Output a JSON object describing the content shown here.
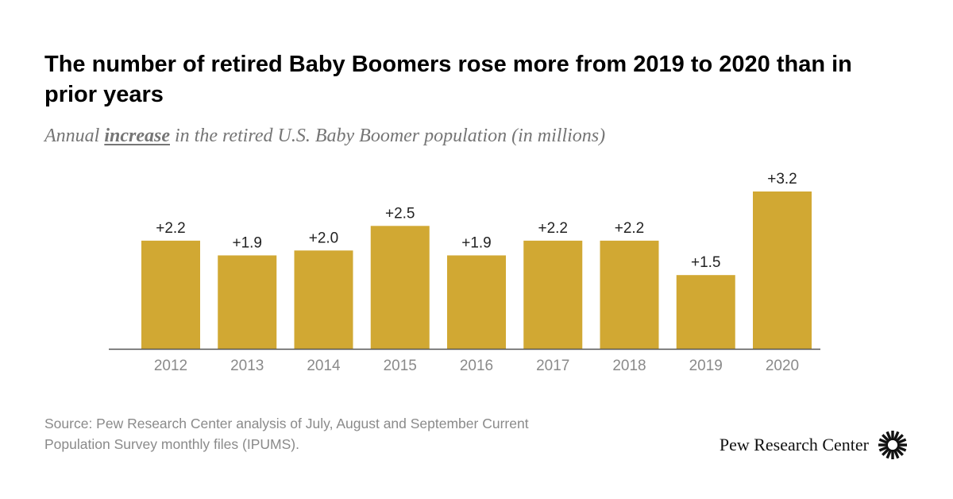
{
  "title": "The number of retired Baby Boomers rose more from 2019 to 2020 than in prior years",
  "subtitle": {
    "before": "Annual ",
    "emphasis": "increase",
    "after": " in the retired U.S. Baby Boomer population (in millions)"
  },
  "chart_data": {
    "type": "bar",
    "title": "The number of retired Baby Boomers rose more from 2019 to 2020 than in prior years",
    "subtitle": "Annual increase in the retired U.S. Baby Boomer population (in millions)",
    "categories": [
      "2012",
      "2013",
      "2014",
      "2015",
      "2016",
      "2017",
      "2018",
      "2019",
      "2020"
    ],
    "values": [
      2.2,
      1.9,
      2.0,
      2.5,
      1.9,
      2.2,
      2.2,
      1.5,
      3.2
    ],
    "data_labels": [
      "+2.2",
      "+1.9",
      "+2.0",
      "+2.5",
      "+1.9",
      "+2.2",
      "+2.2",
      "+1.5",
      "+3.2"
    ],
    "xlabel": "",
    "ylabel": "",
    "ylim": [
      0,
      3.2
    ],
    "grid": false,
    "legend": "none",
    "bar_color": "#D1A833",
    "axis_color": "#555555"
  },
  "source": {
    "line1": "Source: Pew Research Center analysis of July, August and September Current",
    "line2": "Population Survey monthly files (IPUMS)."
  },
  "brand": {
    "name": "Pew Research Center",
    "logo_icon": "pew-sunburst-icon"
  }
}
